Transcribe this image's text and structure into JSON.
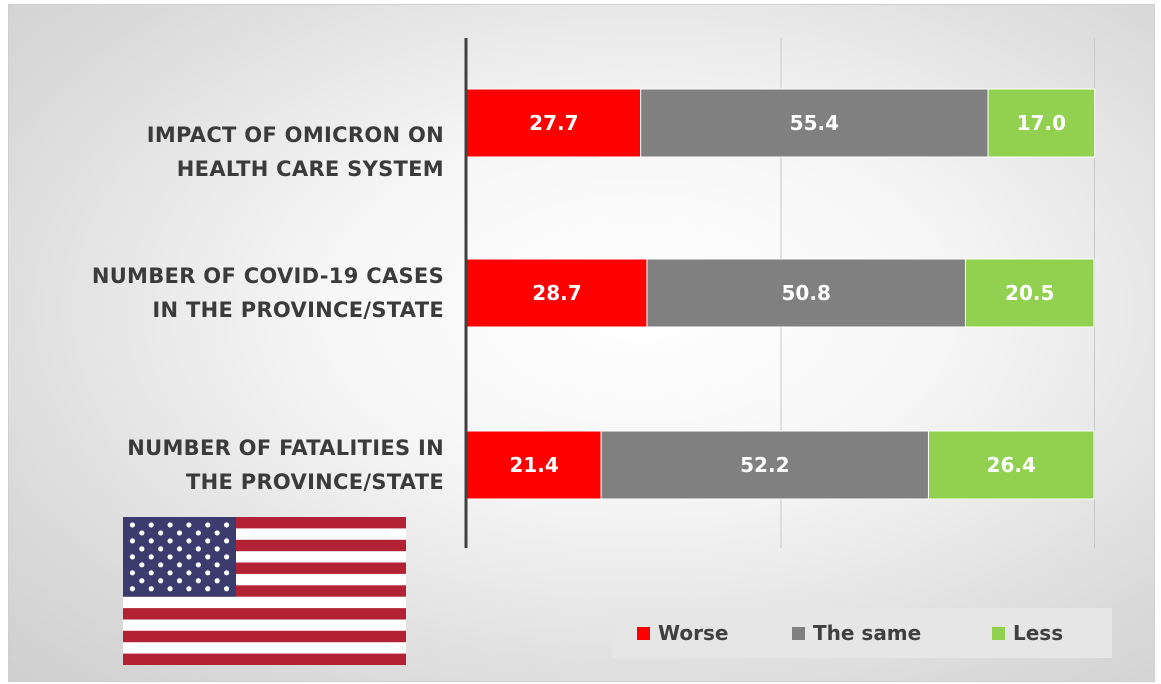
{
  "chart_data": {
    "type": "bar",
    "orientation": "horizontal",
    "stacked": true,
    "categories": [
      [
        "IMPACT OF OMICRON ON",
        "HEALTH CARE SYSTEM"
      ],
      [
        "NUMBER OF COVID-19 CASES",
        "IN THE PROVINCE/STATE"
      ],
      [
        "NUMBER OF FATALITIES IN",
        "THE PROVINCE/STATE"
      ]
    ],
    "series": [
      {
        "name": "Worse",
        "color": "#ff0000",
        "values": [
          27.7,
          28.7,
          21.4
        ],
        "labels": [
          "27.7",
          "28.7",
          "21.4"
        ]
      },
      {
        "name": "The same",
        "color": "#808080",
        "values": [
          55.4,
          50.8,
          52.2
        ],
        "labels": [
          "55.4",
          "50.8",
          "52.2"
        ]
      },
      {
        "name": "Less",
        "color": "#92d050",
        "values": [
          17.0,
          20.5,
          26.4
        ],
        "labels": [
          "17.0",
          "20.5",
          "26.4"
        ]
      }
    ],
    "xlim": [
      0,
      100
    ],
    "grid": true,
    "legend_position": "bottom-right"
  },
  "decoration": {
    "flag": "us-flag"
  }
}
